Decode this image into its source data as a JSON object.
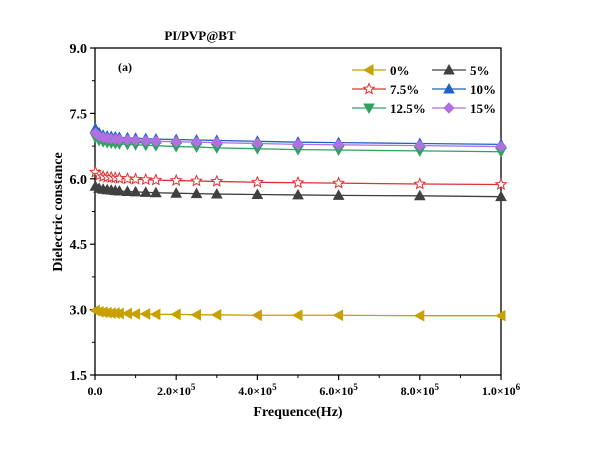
{
  "chart_data": {
    "type": "line",
    "title": "PI/PVP@BT",
    "panel_label": "(a)",
    "xlabel": "Frequence(Hz)",
    "ylabel": "Dielectric constance",
    "xlim": [
      0,
      1000000
    ],
    "ylim": [
      1.5,
      9.0
    ],
    "x_ticks": [
      {
        "value": 0,
        "label": "0.0"
      },
      {
        "value": 200000,
        "label": "2.0×10",
        "exp": "5"
      },
      {
        "value": 400000,
        "label": "4.0×10",
        "exp": "5"
      },
      {
        "value": 600000,
        "label": "6.0×10",
        "exp": "5"
      },
      {
        "value": 800000,
        "label": "8.0×10",
        "exp": "5"
      },
      {
        "value": 1000000,
        "label": "1.0×10",
        "exp": "6"
      }
    ],
    "y_ticks": [
      {
        "value": 1.5,
        "label": "1.5"
      },
      {
        "value": 3.0,
        "label": "3.0"
      },
      {
        "value": 4.5,
        "label": "4.5"
      },
      {
        "value": 6.0,
        "label": "6.0"
      },
      {
        "value": 7.5,
        "label": "7.5"
      },
      {
        "value": 9.0,
        "label": "9.0"
      }
    ],
    "grid": false,
    "legend_position": "top-right",
    "x": [
      1000,
      10000,
      20000,
      30000,
      40000,
      50000,
      60000,
      80000,
      100000,
      125000,
      150000,
      200000,
      250000,
      300000,
      400000,
      500000,
      600000,
      800000,
      1000000
    ],
    "series": [
      {
        "name": "0%",
        "color": "#c8a000",
        "marker": "triangle-left",
        "filled": true,
        "values": [
          2.98,
          2.95,
          2.94,
          2.93,
          2.92,
          2.92,
          2.91,
          2.91,
          2.9,
          2.9,
          2.89,
          2.89,
          2.88,
          2.88,
          2.87,
          2.87,
          2.87,
          2.86,
          2.86
        ]
      },
      {
        "name": "5%",
        "color": "#404040",
        "marker": "triangle-up",
        "filled": true,
        "values": [
          5.83,
          5.78,
          5.76,
          5.75,
          5.74,
          5.73,
          5.72,
          5.71,
          5.7,
          5.69,
          5.68,
          5.67,
          5.66,
          5.65,
          5.64,
          5.63,
          5.62,
          5.61,
          5.59
        ]
      },
      {
        "name": "7.5%",
        "color": "#e03030",
        "marker": "star",
        "filled": false,
        "values": [
          6.15,
          6.08,
          6.05,
          6.04,
          6.03,
          6.02,
          6.01,
          6.0,
          5.99,
          5.98,
          5.97,
          5.96,
          5.95,
          5.94,
          5.92,
          5.91,
          5.9,
          5.88,
          5.87
        ]
      },
      {
        "name": "10%",
        "color": "#2060c8",
        "marker": "triangle-up",
        "filled": true,
        "values": [
          7.15,
          7.05,
          7.0,
          6.98,
          6.97,
          6.96,
          6.95,
          6.94,
          6.93,
          6.92,
          6.91,
          6.9,
          6.89,
          6.88,
          6.86,
          6.84,
          6.83,
          6.81,
          6.79
        ]
      },
      {
        "name": "12.5%",
        "color": "#30a060",
        "marker": "triangle-down",
        "filled": true,
        "values": [
          6.95,
          6.88,
          6.85,
          6.83,
          6.82,
          6.81,
          6.8,
          6.79,
          6.78,
          6.77,
          6.76,
          6.74,
          6.73,
          6.71,
          6.69,
          6.67,
          6.66,
          6.64,
          6.62
        ]
      },
      {
        "name": "15%",
        "color": "#b070e0",
        "marker": "diamond",
        "filled": true,
        "values": [
          7.05,
          6.98,
          6.95,
          6.93,
          6.92,
          6.91,
          6.9,
          6.89,
          6.88,
          6.87,
          6.86,
          6.85,
          6.84,
          6.83,
          6.81,
          6.79,
          6.78,
          6.76,
          6.74
        ]
      }
    ]
  }
}
